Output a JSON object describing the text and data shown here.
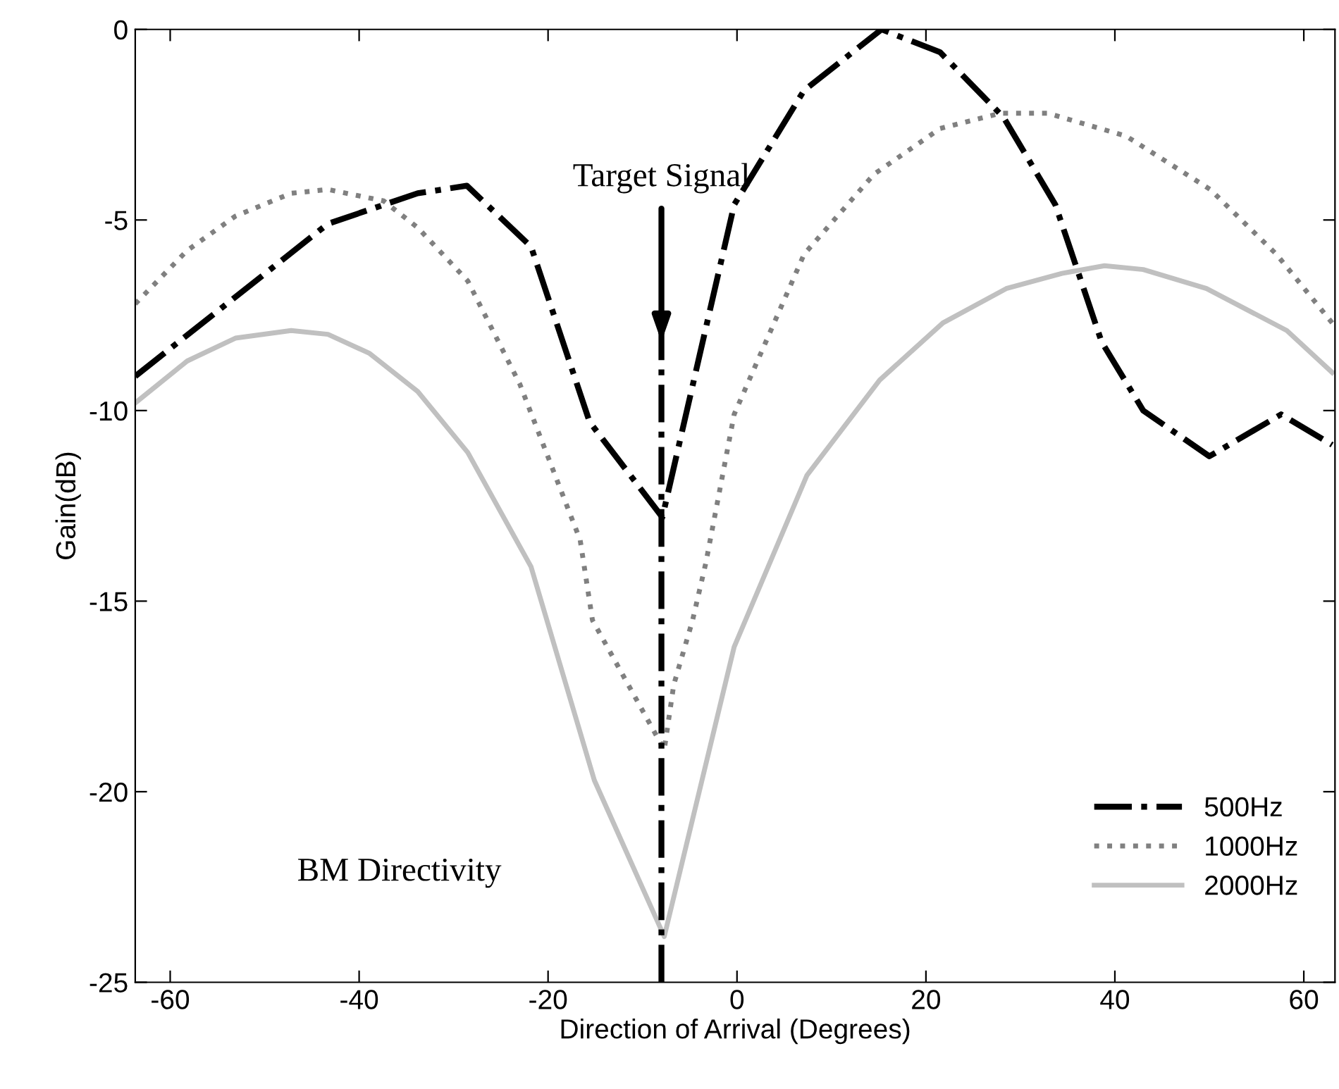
{
  "chart_data": {
    "type": "line",
    "xlabel": "Direction of Arrival (Degrees)",
    "ylabel": "Gain(dB)",
    "xlim": [
      -63.7,
      63.3
    ],
    "ylim": [
      -25,
      0
    ],
    "xticks": [
      -60,
      -40,
      -20,
      0,
      20,
      40,
      60
    ],
    "yticks": [
      -25,
      -20,
      -15,
      -10,
      -5,
      0
    ],
    "grid": false,
    "legend": "bottom right",
    "series": [
      {
        "name": "500Hz",
        "color": "#000000",
        "line_style": "dashdot",
        "x": [
          -63.7,
          -43.3,
          -33.8,
          -28.6,
          -21.8,
          -15.6,
          -7.9,
          -0.3,
          7.1,
          15.3,
          21.5,
          28.2,
          33.7,
          38.6,
          43,
          50,
          57.6,
          63
        ],
        "values": [
          -9.1,
          -5.1,
          -4.3,
          -4.1,
          -5.7,
          -10.3,
          -12.8,
          -4.6,
          -1.6,
          0,
          -0.6,
          -2.3,
          -4.6,
          -8.2,
          -10,
          -11.2,
          -10.1,
          -10.9
        ]
      },
      {
        "name": "1000Hz",
        "color": "#808080",
        "line_style": "dotted",
        "x": [
          -63.7,
          -58.2,
          -53.1,
          -47.2,
          -43.3,
          -37.4,
          -33.8,
          -28.5,
          -23,
          -16.6,
          -15.3,
          -7.7,
          -6.7,
          -4.7,
          -3.3,
          -0.3,
          7.1,
          14.5,
          21.5,
          27.9,
          32.9,
          41.2,
          50.1,
          57.1,
          63
        ],
        "values": [
          -7.2,
          -5.8,
          -4.9,
          -4.3,
          -4.2,
          -4.5,
          -5.2,
          -6.6,
          -9.3,
          -13.4,
          -15.5,
          -18.9,
          -17.2,
          -15.5,
          -14,
          -10.1,
          -5.9,
          -3.8,
          -2.6,
          -2.2,
          -2.2,
          -2.8,
          -4.2,
          -5.9,
          -7.7
        ]
      },
      {
        "name": "2000Hz",
        "color": "#c0c0c0",
        "line_style": "solid",
        "x": [
          -63.7,
          -58.2,
          -53.1,
          -47.2,
          -43.3,
          -38.9,
          -33.8,
          -28.5,
          -21.8,
          -15.1,
          -7.7,
          -0.3,
          7.4,
          15.1,
          21.8,
          28.5,
          34.4,
          38.9,
          43,
          49.7,
          58.2,
          63
        ],
        "values": [
          -9.8,
          -8.7,
          -8.1,
          -7.9,
          -8,
          -8.5,
          -9.5,
          -11.1,
          -14.1,
          -19.7,
          -23.8,
          -16.2,
          -11.7,
          -9.2,
          -7.7,
          -6.8,
          -6.4,
          -6.2,
          -6.3,
          -6.8,
          -7.9,
          -9
        ]
      }
    ],
    "ref_lines": [
      {
        "axis": "x",
        "value": -8,
        "label": "Target Signal",
        "color": "#000000",
        "line_style": "dashdot"
      }
    ],
    "annotations": [
      "BM Directivity"
    ]
  }
}
